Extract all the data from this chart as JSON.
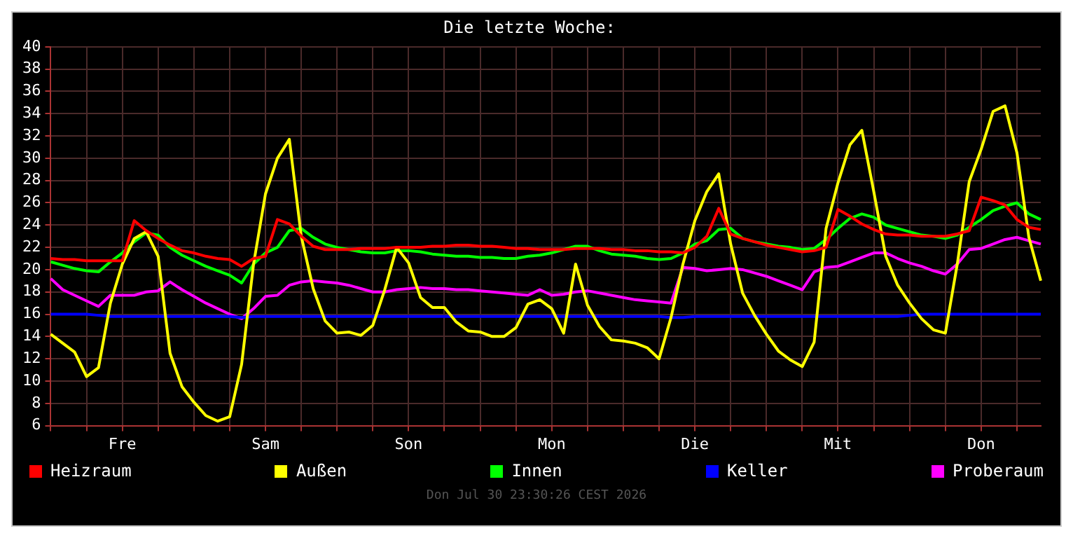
{
  "chart_data": {
    "type": "line",
    "title": "Die letzte Woche:",
    "categories": [
      null,
      null,
      null,
      null,
      null,
      null,
      "Fre",
      null,
      null,
      null,
      null,
      null,
      null,
      null,
      null,
      null,
      null,
      null,
      "Sam",
      null,
      null,
      null,
      null,
      null,
      null,
      null,
      null,
      null,
      null,
      null,
      "Son",
      null,
      null,
      null,
      null,
      null,
      null,
      null,
      null,
      null,
      null,
      null,
      "Mon",
      null,
      null,
      null,
      null,
      null,
      null,
      null,
      null,
      null,
      null,
      null,
      "Die",
      null,
      null,
      null,
      null,
      null,
      null,
      null,
      null,
      null,
      null,
      null,
      "Mit",
      null,
      null,
      null,
      null,
      null,
      null,
      null,
      null,
      null,
      null,
      null,
      "Don",
      null,
      null,
      null,
      null,
      null
    ],
    "ylim": [
      6,
      40
    ],
    "yticks": [
      6,
      8,
      10,
      12,
      14,
      16,
      18,
      20,
      22,
      24,
      26,
      28,
      30,
      32,
      34,
      36,
      38,
      40
    ],
    "grid": true,
    "legend": "bottom",
    "marker": "none",
    "line_style": "solid",
    "annotations": [
      "Don Jul 30 23:30:26 CEST 2026"
    ],
    "series": [
      {
        "name": "Heizraum",
        "color": "#ff0000",
        "values": [
          21,
          20.9,
          20.9,
          20.8,
          20.8,
          20.8,
          20.8,
          24.4,
          23.5,
          22.8,
          22.2,
          21.7,
          21.5,
          21.2,
          21,
          20.9,
          20.3,
          21,
          21.2,
          24.5,
          24.1,
          23,
          22.1,
          21.8,
          21.8,
          21.8,
          21.9,
          21.9,
          21.9,
          22,
          22,
          22,
          22.1,
          22.1,
          22.2,
          22.2,
          22.1,
          22.1,
          22,
          21.9,
          21.9,
          21.8,
          21.8,
          21.8,
          21.9,
          21.9,
          21.9,
          21.8,
          21.8,
          21.7,
          21.7,
          21.6,
          21.6,
          21.5,
          22,
          23,
          25.5,
          23.2,
          22.8,
          22.5,
          22.2,
          22,
          21.8,
          21.6,
          21.7,
          22,
          25.4,
          24.8,
          24.1,
          23.6,
          23.2,
          23.1,
          23.1,
          23,
          23,
          23,
          23.2,
          23.5,
          26.5,
          26.2,
          25.8,
          24.5,
          23.8,
          23.6
        ]
      },
      {
        "name": "Außen",
        "color": "#ffff00",
        "values": [
          14.2,
          13.4,
          12.6,
          10.4,
          11.2,
          17,
          20.5,
          22.8,
          23.4,
          21.2,
          12.5,
          9.5,
          8.1,
          6.9,
          6.4,
          6.8,
          11.5,
          20.5,
          26.8,
          30,
          31.7,
          23,
          18.3,
          15.4,
          14.3,
          14.4,
          14.1,
          15,
          18.2,
          22,
          20.6,
          17.5,
          16.6,
          16.6,
          15.3,
          14.5,
          14.4,
          14,
          14,
          14.8,
          16.9,
          17.3,
          16.5,
          14.3,
          20.5,
          16.8,
          14.9,
          13.7,
          13.6,
          13.4,
          13,
          12,
          15.7,
          20.5,
          24.4,
          27,
          28.6,
          22.3,
          17.9,
          15.9,
          14.2,
          12.7,
          11.9,
          11.3,
          13.5,
          23.7,
          27.8,
          31.2,
          32.5,
          27,
          21.2,
          18.6,
          17,
          15.6,
          14.6,
          14.3,
          20.5,
          27.9,
          30.8,
          34.2,
          34.7,
          30.5,
          22.9,
          19
        ]
      },
      {
        "name": "Innen",
        "color": "#00ff00",
        "values": [
          20.7,
          20.4,
          20.1,
          19.9,
          19.8,
          20.7,
          21.5,
          22.5,
          23.3,
          23.1,
          22,
          21.3,
          20.8,
          20.3,
          19.9,
          19.5,
          18.8,
          20.5,
          21.5,
          22,
          23.5,
          23.7,
          22.9,
          22.3,
          22,
          21.8,
          21.6,
          21.5,
          21.5,
          21.7,
          21.7,
          21.6,
          21.4,
          21.3,
          21.2,
          21.2,
          21.1,
          21.1,
          21,
          21,
          21.2,
          21.3,
          21.5,
          21.8,
          22.1,
          22.1,
          21.7,
          21.4,
          21.3,
          21.2,
          21,
          20.9,
          21,
          21.5,
          22.3,
          22.6,
          23.6,
          23.7,
          22.8,
          22.5,
          22.3,
          22.1,
          22,
          21.8,
          21.9,
          22.7,
          23.7,
          24.6,
          25,
          24.7,
          24,
          23.7,
          23.4,
          23.1,
          23,
          22.8,
          23.1,
          23.8,
          24.5,
          25.3,
          25.7,
          26,
          25,
          24.5
        ]
      },
      {
        "name": "Keller",
        "color": "#0000ff",
        "values": [
          16,
          16,
          16,
          16,
          15.9,
          15.8,
          15.8,
          15.8,
          15.8,
          15.8,
          15.8,
          15.8,
          15.8,
          15.8,
          15.8,
          15.8,
          15.7,
          15.8,
          15.8,
          15.8,
          15.8,
          15.8,
          15.8,
          15.8,
          15.8,
          15.8,
          15.8,
          15.8,
          15.8,
          15.8,
          15.8,
          15.8,
          15.8,
          15.8,
          15.8,
          15.8,
          15.8,
          15.8,
          15.8,
          15.8,
          15.8,
          15.8,
          15.8,
          15.8,
          15.8,
          15.8,
          15.8,
          15.8,
          15.8,
          15.8,
          15.8,
          15.8,
          15.7,
          15.7,
          15.8,
          15.8,
          15.8,
          15.8,
          15.8,
          15.8,
          15.8,
          15.8,
          15.8,
          15.8,
          15.8,
          15.8,
          15.8,
          15.8,
          15.8,
          15.8,
          15.8,
          15.8,
          15.9,
          16,
          16,
          16,
          16,
          16,
          16,
          16,
          16,
          16,
          16,
          16
        ]
      },
      {
        "name": "Proberaum",
        "color": "#ff00ff",
        "values": [
          19.2,
          18.2,
          17.7,
          17.2,
          16.7,
          17.7,
          17.7,
          17.7,
          18,
          18.1,
          18.9,
          18.2,
          17.6,
          17,
          16.5,
          16,
          15.6,
          16.5,
          17.6,
          17.7,
          18.6,
          18.9,
          19,
          18.9,
          18.8,
          18.6,
          18.3,
          18,
          18,
          18.2,
          18.3,
          18.4,
          18.3,
          18.3,
          18.2,
          18.2,
          18.1,
          18,
          17.9,
          17.8,
          17.7,
          18.2,
          17.7,
          17.8,
          18,
          18.1,
          17.9,
          17.7,
          17.5,
          17.3,
          17.2,
          17.1,
          17,
          20.2,
          20.1,
          19.9,
          20,
          20.1,
          20,
          19.7,
          19.4,
          19,
          18.6,
          18.2,
          19.8,
          20.2,
          20.3,
          20.7,
          21.1,
          21.5,
          21.5,
          21,
          20.6,
          20.3,
          19.9,
          19.6,
          20.5,
          21.8,
          21.9,
          22.3,
          22.7,
          22.9,
          22.6,
          22.3
        ]
      }
    ]
  }
}
